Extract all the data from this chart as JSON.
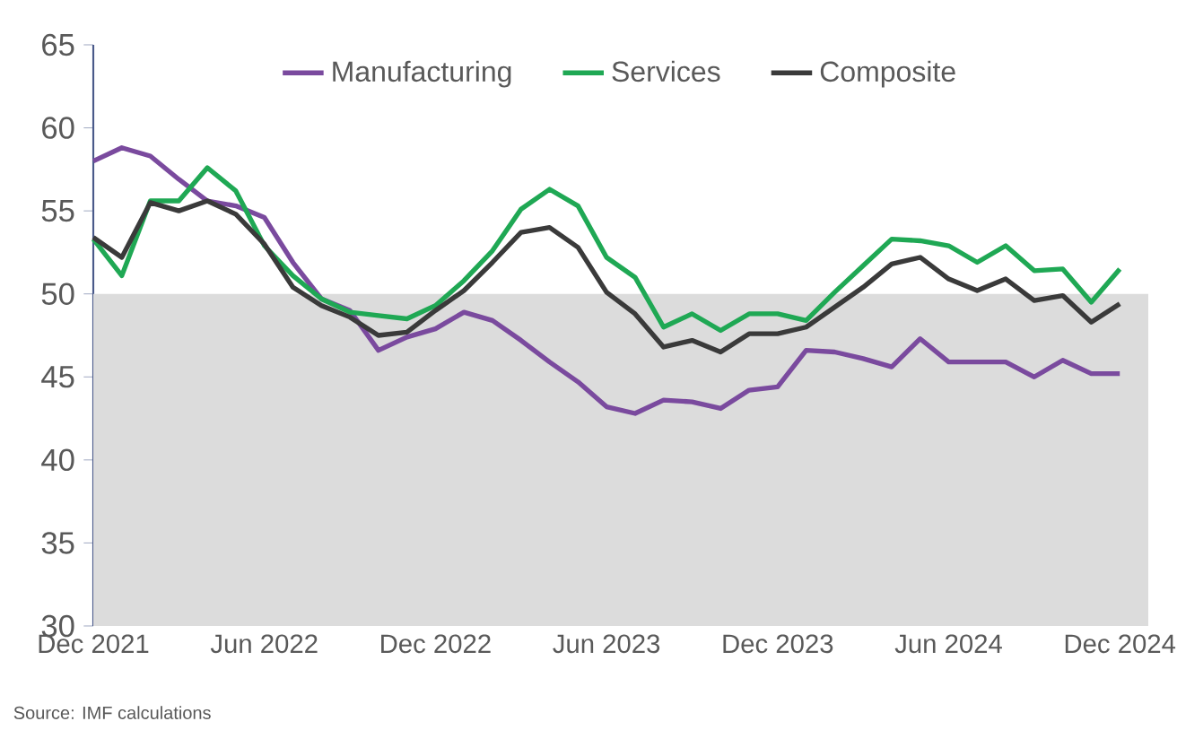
{
  "chart_data": {
    "type": "line",
    "legend": "top",
    "marker": "none",
    "line_style": "solid",
    "grid": false,
    "x": [
      "2021-12",
      "2022-01",
      "2022-02",
      "2022-03",
      "2022-04",
      "2022-05",
      "2022-06",
      "2022-07",
      "2022-08",
      "2022-09",
      "2022-10",
      "2022-11",
      "2022-12",
      "2023-01",
      "2023-02",
      "2023-03",
      "2023-04",
      "2023-05",
      "2023-06",
      "2023-07",
      "2023-08",
      "2023-09",
      "2023-10",
      "2023-11",
      "2023-12",
      "2024-01",
      "2024-02",
      "2024-03",
      "2024-04",
      "2024-05",
      "2024-06",
      "2024-07",
      "2024-08",
      "2024-09",
      "2024-10",
      "2024-11",
      "2024-12"
    ],
    "series": [
      {
        "name": "Manufacturing",
        "color": "#7a4a9e",
        "values": [
          58.0,
          58.8,
          58.3,
          56.9,
          55.6,
          55.3,
          54.6,
          51.9,
          49.7,
          49.0,
          46.6,
          47.4,
          47.9,
          48.9,
          48.4,
          47.2,
          45.9,
          44.7,
          43.2,
          42.8,
          43.6,
          43.5,
          43.1,
          44.2,
          44.4,
          46.6,
          46.5,
          46.1,
          45.6,
          47.3,
          45.9,
          45.9,
          45.9,
          45.0,
          46.0,
          45.2,
          45.2
        ]
      },
      {
        "name": "Services",
        "color": "#1fa854",
        "values": [
          53.3,
          51.1,
          55.6,
          55.6,
          57.6,
          56.2,
          52.9,
          51.1,
          49.7,
          48.9,
          48.7,
          48.5,
          49.3,
          50.8,
          52.6,
          55.1,
          56.3,
          55.3,
          52.2,
          51.0,
          48.0,
          48.8,
          47.8,
          48.8,
          48.8,
          48.4,
          50.1,
          51.7,
          53.3,
          53.2,
          52.9,
          51.9,
          52.9,
          51.4,
          51.5,
          49.5,
          51.5
        ]
      },
      {
        "name": "Composite",
        "color": "#3a3a3a",
        "values": [
          53.4,
          52.2,
          55.5,
          55.0,
          55.6,
          54.8,
          53.0,
          50.4,
          49.3,
          48.6,
          47.5,
          47.7,
          49.0,
          50.2,
          51.9,
          53.7,
          54.0,
          52.8,
          50.1,
          48.8,
          46.8,
          47.2,
          46.5,
          47.6,
          47.6,
          48.0,
          49.2,
          50.4,
          51.8,
          52.2,
          50.9,
          50.2,
          50.9,
          49.6,
          49.9,
          48.3,
          49.4
        ]
      }
    ],
    "xlim": [
      "2021-12",
      "2025-01"
    ],
    "xticks": [
      {
        "value": "2021-12",
        "label": "Dec 2021"
      },
      {
        "value": "2022-06",
        "label": "Jun 2022"
      },
      {
        "value": "2022-12",
        "label": "Dec 2022"
      },
      {
        "value": "2023-06",
        "label": "Jun 2023"
      },
      {
        "value": "2023-12",
        "label": "Dec 2023"
      },
      {
        "value": "2024-06",
        "label": "Jun 2024"
      },
      {
        "value": "2024-12",
        "label": "Dec 2024"
      }
    ],
    "ylim": [
      30,
      65
    ],
    "yticks": [
      30,
      35,
      40,
      45,
      50,
      55,
      60,
      65
    ],
    "bands": [
      {
        "axis": "y",
        "from": 30,
        "to": 50,
        "color": "#dcdcdc"
      }
    ],
    "annotations": [
      "Source: IMF calculations"
    ]
  }
}
